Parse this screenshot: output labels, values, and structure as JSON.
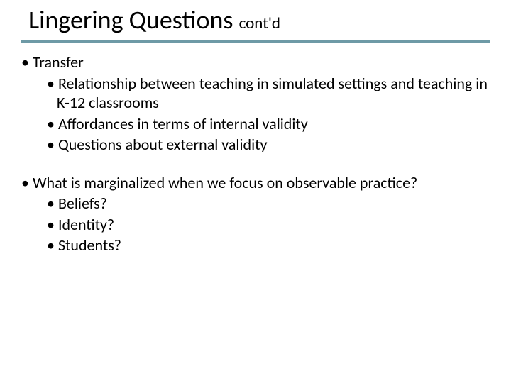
{
  "title": {
    "main": "Lingering Questions ",
    "sub": "cont'd"
  },
  "colors": {
    "rule": "#6e9aa6",
    "text": "#000000",
    "background": "#ffffff"
  },
  "typography": {
    "title_main_fontsize": 36,
    "title_sub_fontsize": 23,
    "body_fontsize": 22,
    "font_family": "Calibri"
  },
  "bullets": [
    {
      "level": 1,
      "text": "Transfer"
    },
    {
      "level": 2,
      "text": "Relationship between teaching in simulated settings and teaching in K-12 classrooms"
    },
    {
      "level": 2,
      "text": "Affordances in terms of internal validity"
    },
    {
      "level": 2,
      "text": "Questions about external validity"
    },
    {
      "level": 0,
      "text": ""
    },
    {
      "level": 1,
      "text": "What is marginalized when we focus on observable practice?"
    },
    {
      "level": 2,
      "text": "Beliefs?"
    },
    {
      "level": 2,
      "text": "Identity?"
    },
    {
      "level": 2,
      "text": "Students?"
    }
  ]
}
